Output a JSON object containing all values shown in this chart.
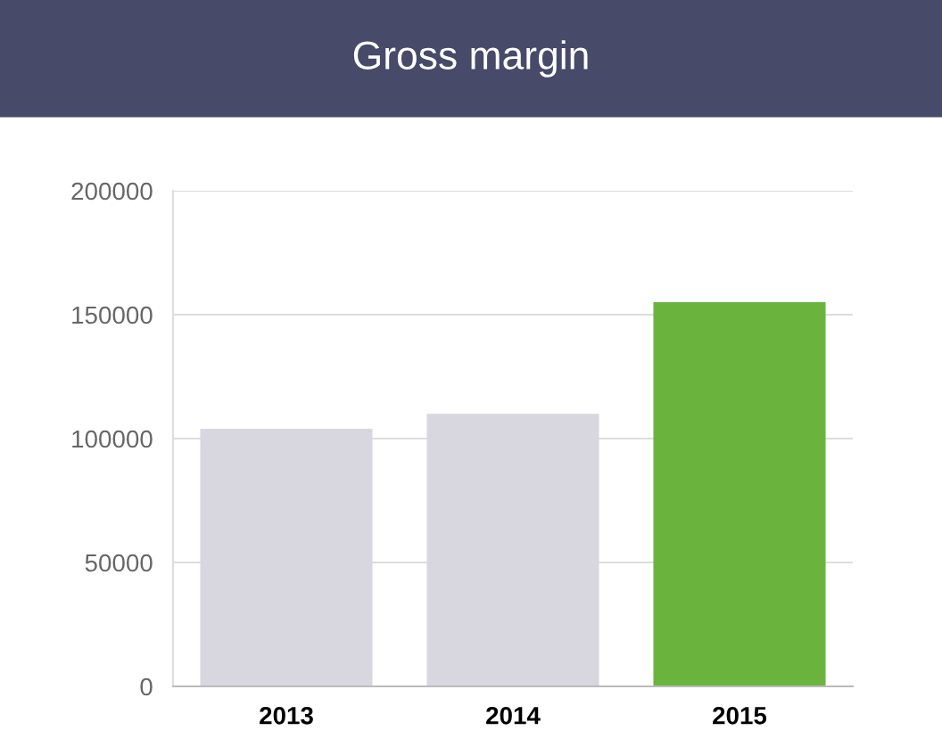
{
  "chart_data": {
    "type": "bar",
    "title": "Gross margin",
    "categories": [
      "2013",
      "2014",
      "2015"
    ],
    "values": [
      104000,
      110000,
      155000
    ],
    "colors": [
      "#d8d6df",
      "#d8d6df",
      "#6ab43e"
    ],
    "ylim": [
      0,
      200000
    ],
    "yticks": [
      0,
      50000,
      100000,
      150000,
      200000
    ],
    "grid": "y"
  }
}
